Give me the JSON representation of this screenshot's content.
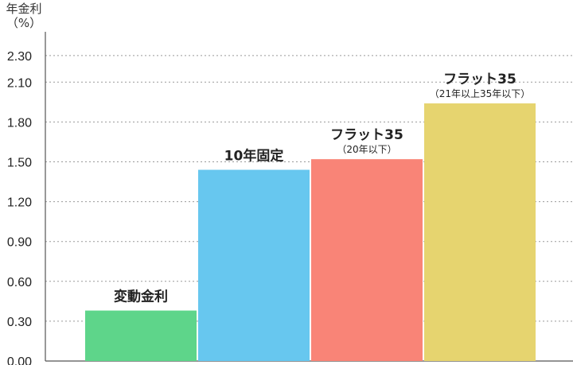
{
  "chart_data": {
    "type": "bar",
    "title": "",
    "ylabel": [
      "年金利",
      "（%）"
    ],
    "xlabel": "",
    "ylim": [
      0,
      2.4
    ],
    "yticks": [
      "0.00",
      "0.30",
      "0.60",
      "0.90",
      "1.20",
      "1.50",
      "1.80",
      "2.10",
      "2.30"
    ],
    "grid": true,
    "categories": [
      {
        "label": "変動金利",
        "sublabel": ""
      },
      {
        "label": "10年固定",
        "sublabel": ""
      },
      {
        "label": "フラット35",
        "sublabel": "（20年以下）"
      },
      {
        "label": "フラット35",
        "sublabel": "（21年以上35年以下）"
      }
    ],
    "values": [
      0.38,
      1.44,
      1.52,
      1.94
    ],
    "colors": [
      "#5ed58a",
      "#67c7ef",
      "#f98477",
      "#e6d46f"
    ]
  }
}
